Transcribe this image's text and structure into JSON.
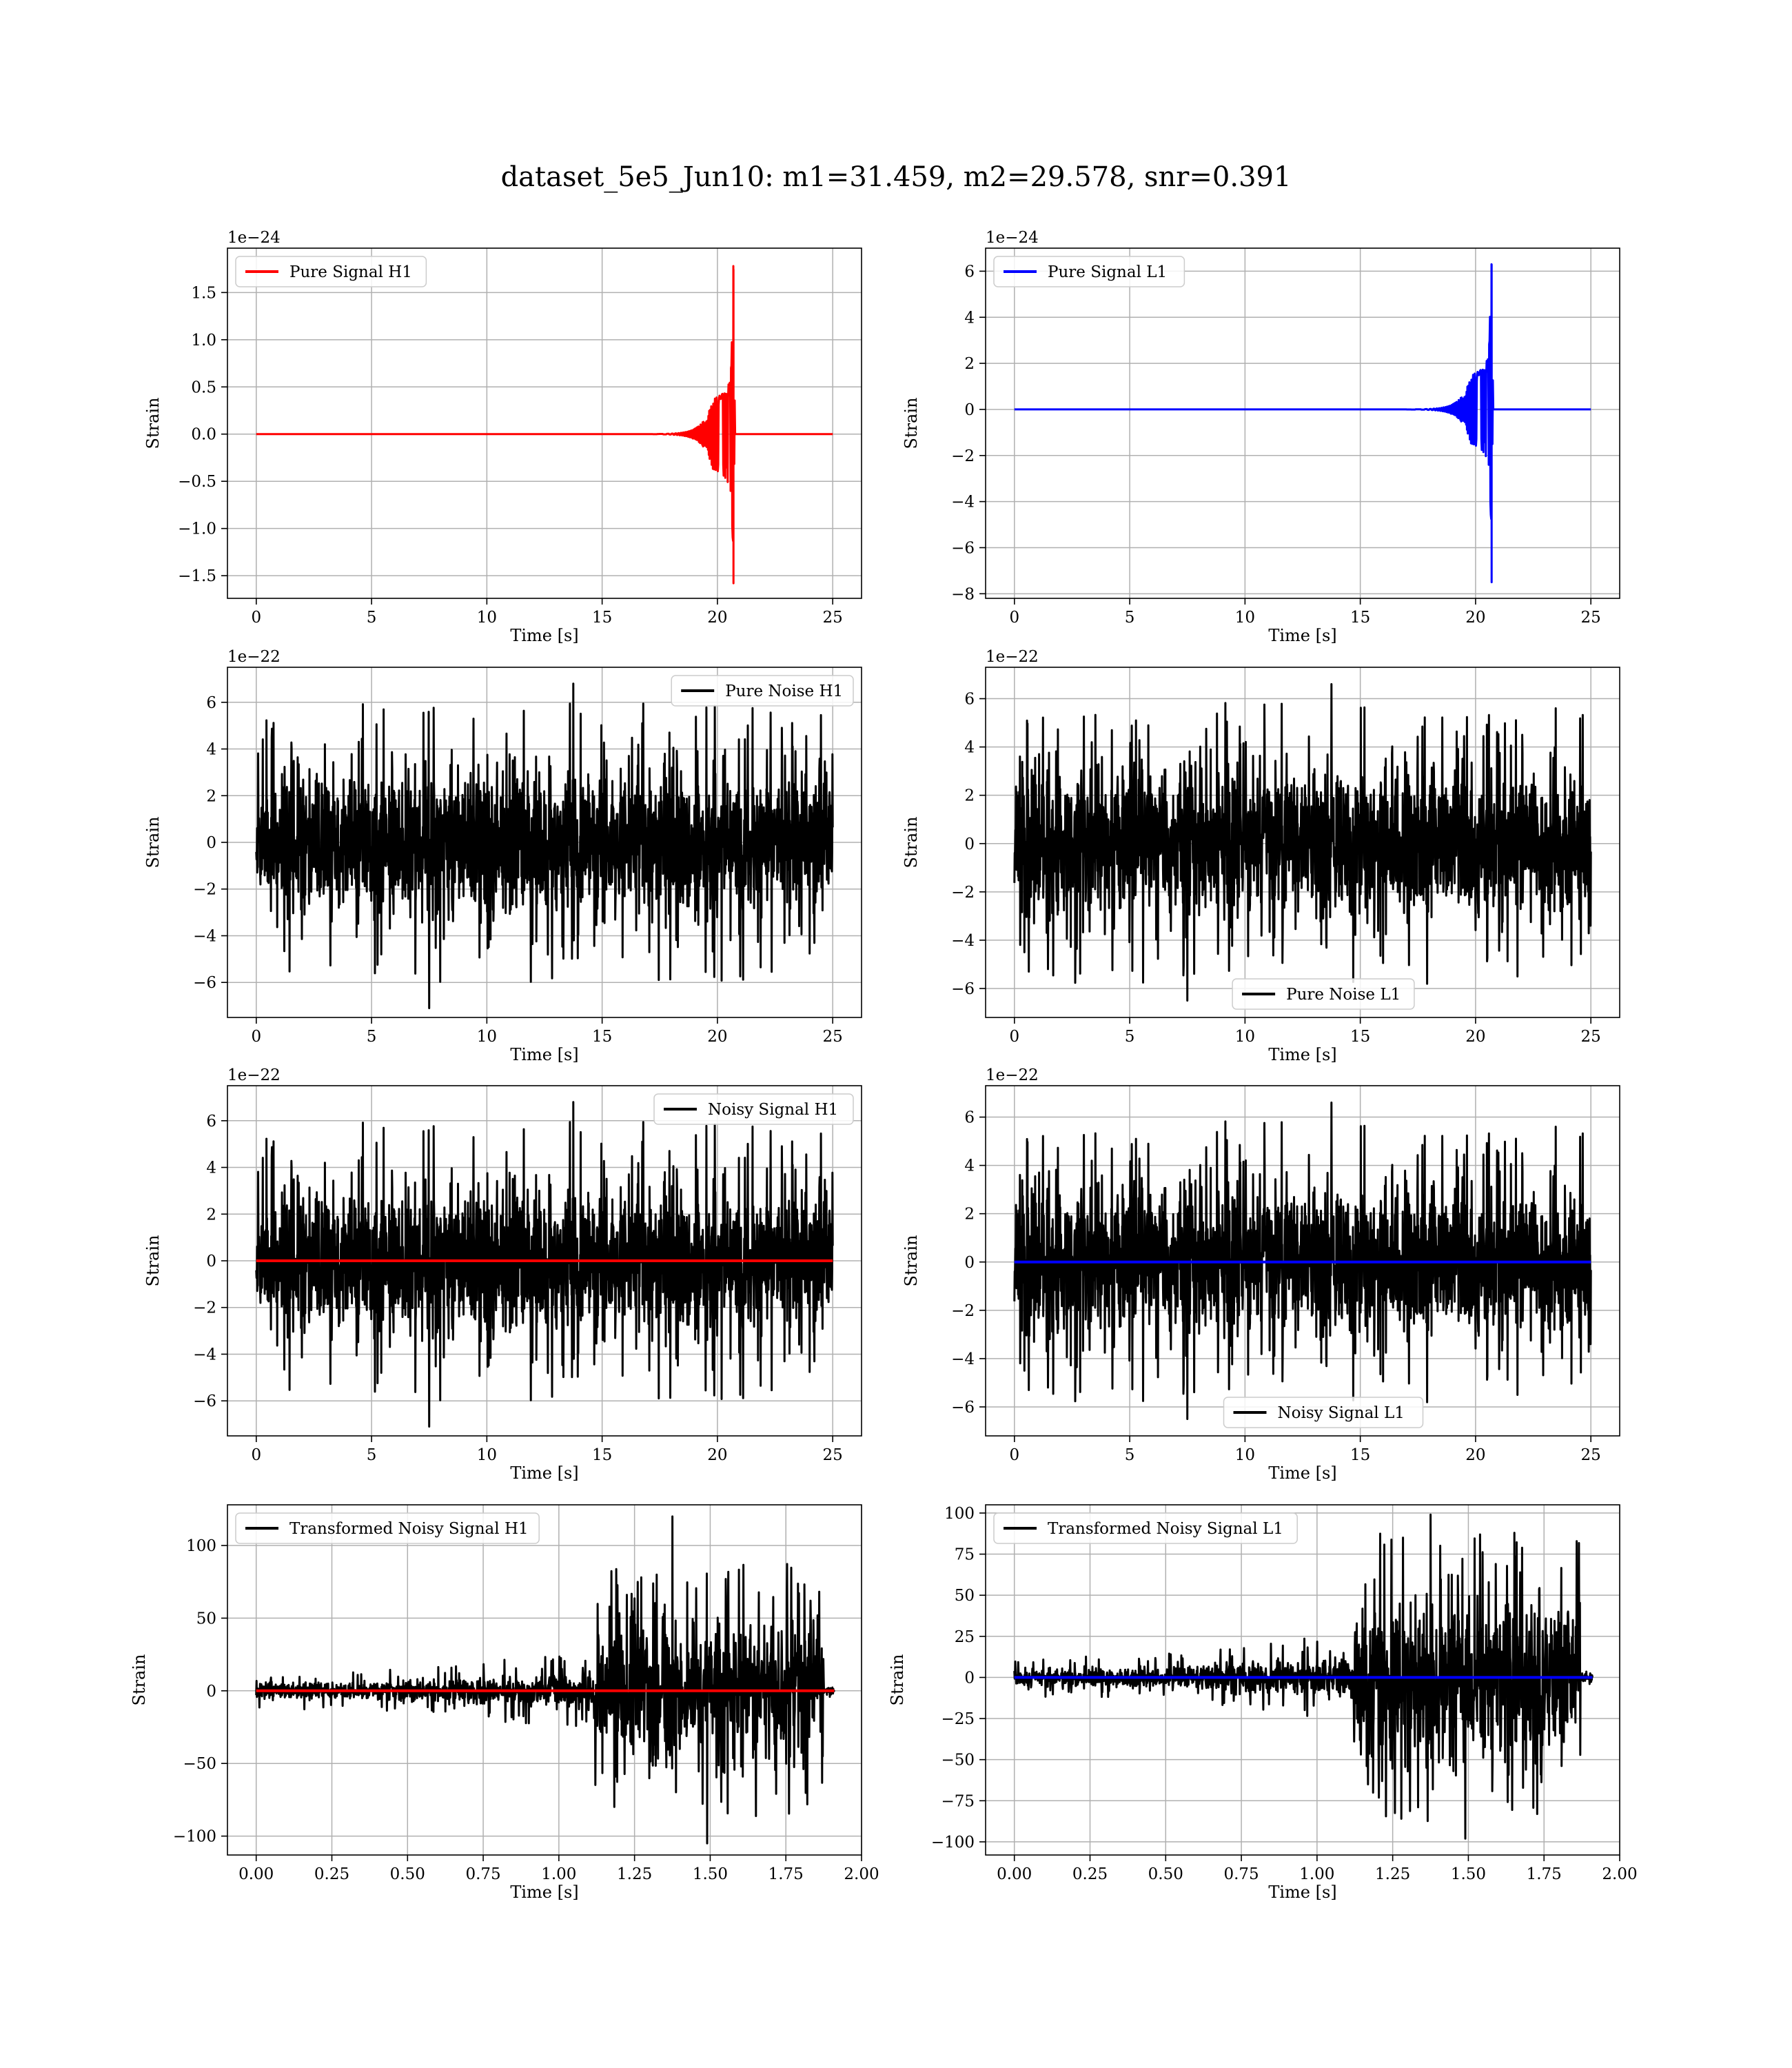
{
  "figure": {
    "suptitle": "dataset_5e5_Jun10: m1=31.459, m2=29.578, snr=0.391"
  },
  "colors": {
    "h1": "#ff0000",
    "l1": "#0000ff",
    "noise": "#000000",
    "grid": "#b0b0b0"
  },
  "chart_data": [
    {
      "id": "pure-signal-h1",
      "type": "line",
      "xlabel": "Time [s]",
      "ylabel": "Strain",
      "offset_text": "1e−24",
      "xlim": [
        -1.25,
        26.25
      ],
      "ylim": [
        -1.74,
        1.97
      ],
      "xticks": [
        0,
        5,
        10,
        15,
        20,
        25
      ],
      "xtick_labels": [
        "0",
        "5",
        "10",
        "15",
        "20",
        "25"
      ],
      "yticks": [
        -1.5,
        -1.0,
        -0.5,
        0.0,
        0.5,
        1.0,
        1.5
      ],
      "ytick_labels": [
        "−1.5",
        "−1.0",
        "−0.5",
        "0.0",
        "0.5",
        "1.0",
        "1.5"
      ],
      "grid": true,
      "legend_loc": "upper left",
      "series": [
        {
          "name": "Pure Signal H1",
          "color_key": "h1",
          "kind": "chirp",
          "x_start": 0,
          "x_end": 25,
          "merger": 20.7,
          "peak_pos": 1.78,
          "peak_neg": -1.58,
          "plateau": 0.5
        }
      ]
    },
    {
      "id": "pure-signal-l1",
      "type": "line",
      "xlabel": "Time [s]",
      "ylabel": "Strain",
      "offset_text": "1e−24",
      "xlim": [
        -1.25,
        26.25
      ],
      "ylim": [
        -8.2,
        7.0
      ],
      "xticks": [
        0,
        5,
        10,
        15,
        20,
        25
      ],
      "xtick_labels": [
        "0",
        "5",
        "10",
        "15",
        "20",
        "25"
      ],
      "yticks": [
        -8,
        -6,
        -4,
        -2,
        0,
        2,
        4,
        6
      ],
      "ytick_labels": [
        "−8",
        "−6",
        "−4",
        "−2",
        "0",
        "2",
        "4",
        "6"
      ],
      "grid": true,
      "legend_loc": "upper left",
      "series": [
        {
          "name": "Pure Signal L1",
          "color_key": "l1",
          "kind": "chirp",
          "x_start": 0,
          "x_end": 25,
          "merger": 20.7,
          "peak_pos": 6.3,
          "peak_neg": -7.5,
          "plateau": 2.0
        }
      ]
    },
    {
      "id": "pure-noise-h1",
      "type": "line",
      "xlabel": "Time [s]",
      "ylabel": "Strain",
      "offset_text": "1e−22",
      "xlim": [
        -1.25,
        26.25
      ],
      "ylim": [
        -7.5,
        7.5
      ],
      "xticks": [
        0,
        5,
        10,
        15,
        20,
        25
      ],
      "xtick_labels": [
        "0",
        "5",
        "10",
        "15",
        "20",
        "25"
      ],
      "yticks": [
        -6,
        -4,
        -2,
        0,
        2,
        4,
        6
      ],
      "ytick_labels": [
        "−6",
        "−4",
        "−2",
        "0",
        "2",
        "4",
        "6"
      ],
      "grid": true,
      "legend_loc": "upper right",
      "series": [
        {
          "name": "Pure Noise H1",
          "color_key": "noise",
          "kind": "noise",
          "x_start": 0,
          "x_end": 25,
          "band": 3.5,
          "max": 6.8,
          "min": -7.1,
          "seed": 11
        }
      ]
    },
    {
      "id": "pure-noise-l1",
      "type": "line",
      "xlabel": "Time [s]",
      "ylabel": "Strain",
      "offset_text": "1e−22",
      "xlim": [
        -1.25,
        26.25
      ],
      "ylim": [
        -7.2,
        7.3
      ],
      "xticks": [
        0,
        5,
        10,
        15,
        20,
        25
      ],
      "xtick_labels": [
        "0",
        "5",
        "10",
        "15",
        "20",
        "25"
      ],
      "yticks": [
        -6,
        -4,
        -2,
        0,
        2,
        4,
        6
      ],
      "ytick_labels": [
        "−6",
        "−4",
        "−2",
        "0",
        "2",
        "4",
        "6"
      ],
      "grid": true,
      "legend_loc": "lower center",
      "series": [
        {
          "name": "Pure Noise L1",
          "color_key": "noise",
          "kind": "noise",
          "x_start": 0,
          "x_end": 25,
          "band": 3.5,
          "max": 6.6,
          "min": -6.5,
          "seed": 23
        }
      ]
    },
    {
      "id": "noisy-signal-h1",
      "type": "line",
      "xlabel": "Time [s]",
      "ylabel": "Strain",
      "offset_text": "1e−22",
      "xlim": [
        -1.25,
        26.25
      ],
      "ylim": [
        -7.5,
        7.5
      ],
      "xticks": [
        0,
        5,
        10,
        15,
        20,
        25
      ],
      "xtick_labels": [
        "0",
        "5",
        "10",
        "15",
        "20",
        "25"
      ],
      "yticks": [
        -6,
        -4,
        -2,
        0,
        2,
        4,
        6
      ],
      "ytick_labels": [
        "−6",
        "−4",
        "−2",
        "0",
        "2",
        "4",
        "6"
      ],
      "grid": true,
      "legend_loc": "upper right",
      "series": [
        {
          "name": "Noisy Signal H1",
          "color_key": "noise",
          "kind": "noise",
          "x_start": 0,
          "x_end": 25,
          "band": 3.5,
          "max": 6.8,
          "min": -7.1,
          "seed": 11
        },
        {
          "name": "",
          "color_key": "h1",
          "kind": "flat",
          "x_start": 0,
          "x_end": 25,
          "value": 0
        }
      ]
    },
    {
      "id": "noisy-signal-l1",
      "type": "line",
      "xlabel": "Time [s]",
      "ylabel": "Strain",
      "offset_text": "1e−22",
      "xlim": [
        -1.25,
        26.25
      ],
      "ylim": [
        -7.2,
        7.3
      ],
      "xticks": [
        0,
        5,
        10,
        15,
        20,
        25
      ],
      "xtick_labels": [
        "0",
        "5",
        "10",
        "15",
        "20",
        "25"
      ],
      "yticks": [
        -6,
        -4,
        -2,
        0,
        2,
        4,
        6
      ],
      "ytick_labels": [
        "−6",
        "−4",
        "−2",
        "0",
        "2",
        "4",
        "6"
      ],
      "grid": true,
      "legend_loc": "lower center",
      "series": [
        {
          "name": "Noisy Signal L1",
          "color_key": "noise",
          "kind": "noise",
          "x_start": 0,
          "x_end": 25,
          "band": 3.5,
          "max": 6.6,
          "min": -6.5,
          "seed": 23
        },
        {
          "name": "",
          "color_key": "l1",
          "kind": "flat",
          "x_start": 0,
          "x_end": 25,
          "value": 0
        }
      ]
    },
    {
      "id": "transformed-noisy-signal-h1",
      "type": "line",
      "xlabel": "Time [s]",
      "ylabel": "Strain",
      "offset_text": "",
      "xlim": [
        -0.095,
        2.0
      ],
      "ylim": [
        -113,
        128
      ],
      "xticks": [
        0,
        0.25,
        0.5,
        0.75,
        1.0,
        1.25,
        1.5,
        1.75,
        2.0
      ],
      "xtick_labels": [
        "0.00",
        "0.25",
        "0.50",
        "0.75",
        "1.00",
        "1.25",
        "1.50",
        "1.75",
        "2.00"
      ],
      "yticks": [
        -100,
        -50,
        0,
        50,
        100
      ],
      "ytick_labels": [
        "−100",
        "−50",
        "0",
        "50",
        "100"
      ],
      "grid": true,
      "legend_loc": "upper left",
      "series": [
        {
          "name": "Transformed Noisy Signal H1",
          "color_key": "noise",
          "kind": "whitened",
          "x_start": 0,
          "x_end": 1.91,
          "jump": 1.12,
          "end_drop": 1.875,
          "low_band": 5,
          "high_band": 40,
          "max": 120,
          "min": -105,
          "seed": 37
        },
        {
          "name": "",
          "color_key": "h1",
          "kind": "flat",
          "x_start": 0,
          "x_end": 1.91,
          "value": 0
        }
      ]
    },
    {
      "id": "transformed-noisy-signal-l1",
      "type": "line",
      "xlabel": "Time [s]",
      "ylabel": "Strain",
      "offset_text": "",
      "xlim": [
        -0.095,
        2.0
      ],
      "ylim": [
        -108,
        105
      ],
      "xticks": [
        0,
        0.25,
        0.5,
        0.75,
        1.0,
        1.25,
        1.5,
        1.75,
        2.0
      ],
      "xtick_labels": [
        "0.00",
        "0.25",
        "0.50",
        "0.75",
        "1.00",
        "1.25",
        "1.50",
        "1.75",
        "2.00"
      ],
      "yticks": [
        -100,
        -75,
        -50,
        -25,
        0,
        25,
        50,
        75,
        100
      ],
      "ytick_labels": [
        "−100",
        "−75",
        "−50",
        "−25",
        "0",
        "25",
        "50",
        "75",
        "100"
      ],
      "grid": true,
      "legend_loc": "upper left",
      "series": [
        {
          "name": "Transformed Noisy Signal L1",
          "color_key": "noise",
          "kind": "whitened",
          "x_start": 0,
          "x_end": 1.91,
          "jump": 1.12,
          "end_drop": 1.87,
          "low_band": 5,
          "high_band": 40,
          "max": 99,
          "min": -98,
          "seed": 53
        },
        {
          "name": "",
          "color_key": "l1",
          "kind": "flat",
          "x_start": 0,
          "x_end": 1.91,
          "value": 0
        }
      ]
    }
  ]
}
